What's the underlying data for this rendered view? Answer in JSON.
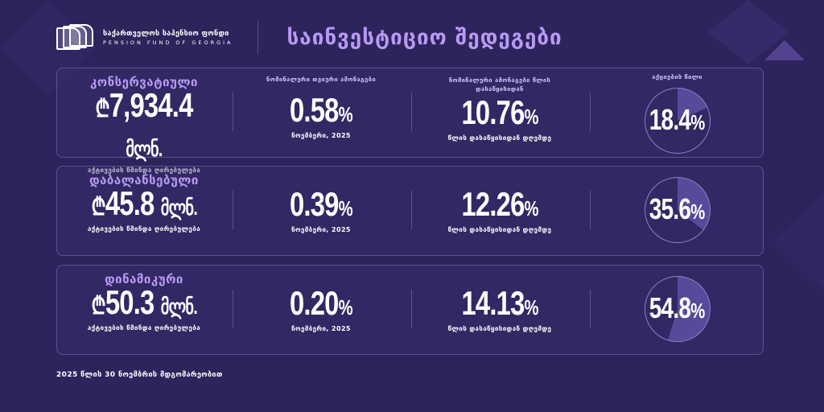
{
  "header": {
    "logo_line1": "საქართველოს საპენსიო ფონდი",
    "logo_line2": "PENSION FUND OF GEORGIA",
    "title": "საინვესტიციო შედეგები"
  },
  "labels": {
    "monthly_title": "ნომინალური თვიური ამონაგები",
    "ytd_title": "ნომინალური ამონაგები წლის დასაწყისიდან",
    "equity_title": "აქციების წილი",
    "nav_label": "აქტივების წმინდა ღირებულება",
    "month_label": "ნოემბერი, 2025",
    "ytd_label": "წლის დასაწყისიდან დღემდე",
    "currency": "₾",
    "unit": "მლნ.",
    "percent": "%"
  },
  "colors": {
    "accent": "#b79af2",
    "background": "#2d245c",
    "pie_fill": "#574a9a"
  },
  "funds": [
    {
      "name": "კონსერვატიული",
      "nav": "7,934.4",
      "monthly": "0.58",
      "ytd": "10.76",
      "equity": "18.4",
      "equity_value": 18.4
    },
    {
      "name": "დაბალანსებული",
      "nav": "45.8",
      "monthly": "0.39",
      "ytd": "12.26",
      "equity": "35.6",
      "equity_value": 35.6
    },
    {
      "name": "დინამიკური",
      "nav": "50.3",
      "monthly": "0.20",
      "ytd": "14.13",
      "equity": "54.8",
      "equity_value": 54.8
    }
  ],
  "footer": "2025 წლის 30 ნოემბრის მდგომარეობით"
}
